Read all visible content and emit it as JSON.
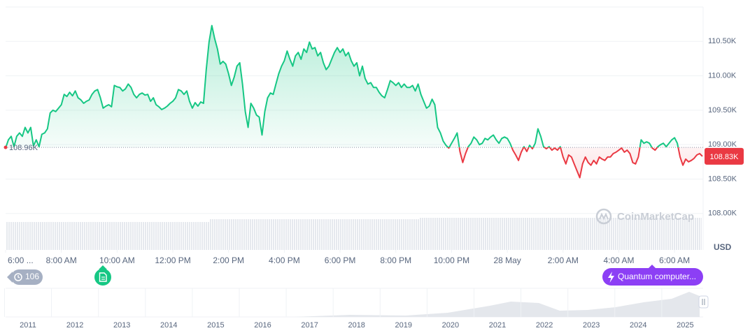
{
  "chart_data": {
    "type": "line",
    "xlim": [
      0,
      1500
    ],
    "xticks": [
      {
        "value": 0,
        "label": "6:00 ..."
      },
      {
        "value": 120,
        "label": "8:00 AM"
      },
      {
        "value": 240,
        "label": "10:00 AM"
      },
      {
        "value": 360,
        "label": "12:00 PM"
      },
      {
        "value": 480,
        "label": "2:00 PM"
      },
      {
        "value": 600,
        "label": "4:00 PM"
      },
      {
        "value": 720,
        "label": "6:00 PM"
      },
      {
        "value": 840,
        "label": "8:00 PM"
      },
      {
        "value": 960,
        "label": "10:00 PM"
      },
      {
        "value": 1080,
        "label": "28 May"
      },
      {
        "value": 1200,
        "label": "2:00 AM"
      },
      {
        "value": 1320,
        "label": "4:00 AM"
      },
      {
        "value": 1440,
        "label": "6:00 AM"
      }
    ],
    "ylim": [
      107470,
      111000
    ],
    "yticks": [
      {
        "value": 108000,
        "label": "108.00K"
      },
      {
        "value": 108500,
        "label": "108.50K"
      },
      {
        "value": 109000,
        "label": "109.00K"
      },
      {
        "value": 109500,
        "label": "109.50K"
      },
      {
        "value": 110000,
        "label": "110.00K"
      },
      {
        "value": 110500,
        "label": "110.50K"
      }
    ],
    "y_unit_label": "USD",
    "grid": true,
    "color_up": "#16c784",
    "color_down": "#ea3943",
    "reference": {
      "value": 108960,
      "label": "108.96K"
    },
    "current_price": {
      "value": 108830,
      "label": "108.83K"
    },
    "x": [
      0,
      6,
      12,
      18,
      24,
      30,
      36,
      42,
      48,
      54,
      60,
      66,
      72,
      78,
      84,
      90,
      96,
      102,
      108,
      114,
      120,
      126,
      132,
      138,
      144,
      150,
      156,
      162,
      168,
      174,
      180,
      186,
      192,
      198,
      204,
      210,
      216,
      222,
      228,
      234,
      240,
      246,
      252,
      258,
      264,
      270,
      276,
      282,
      288,
      294,
      300,
      306,
      312,
      318,
      324,
      330,
      336,
      342,
      348,
      354,
      360,
      366,
      372,
      378,
      384,
      390,
      396,
      402,
      408,
      414,
      420,
      426,
      432,
      438,
      444,
      450,
      456,
      462,
      468,
      474,
      480,
      486,
      492,
      498,
      504,
      510,
      516,
      522,
      528,
      534,
      540,
      546,
      552,
      558,
      564,
      570,
      576,
      582,
      588,
      594,
      600,
      606,
      612,
      618,
      624,
      630,
      636,
      642,
      648,
      654,
      660,
      666,
      672,
      678,
      684,
      690,
      696,
      702,
      708,
      714,
      720,
      726,
      732,
      738,
      744,
      750,
      756,
      762,
      768,
      774,
      780,
      786,
      792,
      798,
      804,
      810,
      816,
      822,
      828,
      834,
      840,
      846,
      852,
      858,
      864,
      870,
      876,
      882,
      888,
      894,
      900,
      906,
      912,
      918,
      924,
      930,
      936,
      942,
      948,
      954,
      960,
      966,
      972,
      978,
      984,
      990,
      996,
      1002,
      1008,
      1014,
      1020,
      1026,
      1032,
      1038,
      1044,
      1050,
      1056,
      1062,
      1068,
      1074,
      1080,
      1086,
      1092,
      1098,
      1104,
      1110,
      1116,
      1122,
      1128,
      1134,
      1140,
      1146,
      1152,
      1158,
      1164,
      1170,
      1176,
      1182,
      1188,
      1194,
      1200,
      1206,
      1212,
      1218,
      1224,
      1230,
      1236,
      1242,
      1248,
      1254,
      1260,
      1266,
      1272,
      1278,
      1284,
      1290,
      1296,
      1302,
      1308,
      1314,
      1320,
      1326,
      1332,
      1338,
      1344,
      1350,
      1356,
      1362,
      1368,
      1374,
      1380,
      1386,
      1392,
      1398,
      1404,
      1410,
      1416,
      1422,
      1428,
      1434,
      1440,
      1446,
      1452,
      1458,
      1464,
      1470,
      1476,
      1482,
      1488,
      1494,
      1500
    ],
    "values": [
      108950,
      109070,
      109120,
      108970,
      109120,
      109170,
      109120,
      109250,
      109170,
      109250,
      108980,
      109070,
      108970,
      109150,
      109170,
      109230,
      109460,
      109500,
      109480,
      109530,
      109580,
      109730,
      109700,
      109760,
      109710,
      109780,
      109680,
      109650,
      109600,
      109630,
      109650,
      109730,
      109780,
      109800,
      109680,
      109530,
      109560,
      109580,
      109550,
      109860,
      109840,
      109830,
      109780,
      109810,
      109880,
      109830,
      109730,
      109680,
      109730,
      109750,
      109720,
      109730,
      109630,
      109680,
      109580,
      109550,
      109510,
      109530,
      109560,
      109600,
      109630,
      109680,
      109800,
      109780,
      109730,
      109780,
      109630,
      109530,
      109610,
      109560,
      109620,
      109600,
      110090,
      110490,
      110730,
      110540,
      110390,
      110170,
      110210,
      110170,
      110030,
      109860,
      109980,
      110140,
      110190,
      109880,
      109480,
      109250,
      109600,
      109530,
      109430,
      109400,
      109140,
      109480,
      109680,
      109750,
      109730,
      109880,
      110030,
      110140,
      110220,
      110360,
      110240,
      110140,
      110290,
      110340,
      110240,
      110390,
      110340,
      110490,
      110390,
      110410,
      110290,
      110340,
      110190,
      110090,
      110140,
      110240,
      110340,
      110410,
      110340,
      110390,
      110290,
      110340,
      110220,
      110140,
      110190,
      110000,
      110140,
      109960,
      109880,
      109900,
      109830,
      109830,
      109760,
      109710,
      109680,
      109800,
      109930,
      109900,
      109860,
      109900,
      109830,
      109880,
      109830,
      109830,
      109860,
      109780,
      109880,
      109730,
      109630,
      109530,
      109560,
      109660,
      109580,
      109250,
      109170,
      109050,
      108990,
      108950,
      109020,
      109090,
      109170,
      108900,
      108740,
      108870,
      108970,
      109020,
      109110,
      109070,
      109000,
      109020,
      109090,
      109070,
      109110,
      109140,
      109070,
      109020,
      109090,
      109110,
      109090,
      109020,
      108920,
      108850,
      108770,
      108890,
      108970,
      108900,
      108990,
      108940,
      109020,
      109230,
      109120,
      108970,
      108940,
      108970,
      108920,
      108950,
      108920,
      108970,
      108820,
      108720,
      108850,
      108820,
      108720,
      108620,
      108520,
      108720,
      108820,
      108740,
      108700,
      108770,
      108720,
      108820,
      108790,
      108770,
      108820,
      108820,
      108870,
      108890,
      108920,
      108950,
      108890,
      108920,
      108870,
      108740,
      108720,
      108820,
      109070,
      109020,
      109040,
      109020,
      108950,
      108920,
      108970,
      109000,
      109020,
      108970,
      109020,
      109070,
      109100,
      109020,
      108820,
      108700,
      108790,
      108750,
      108770,
      108800,
      108850,
      108870,
      108830
    ],
    "watermark": "CoinMarketCap",
    "events": {
      "count": 106,
      "headline": "Quantum computer..."
    },
    "navigator_years": [
      "2011",
      "2012",
      "2013",
      "2014",
      "2015",
      "2016",
      "2017",
      "2018",
      "2019",
      "2020",
      "2021",
      "2022",
      "2023",
      "2024",
      "2025"
    ]
  }
}
